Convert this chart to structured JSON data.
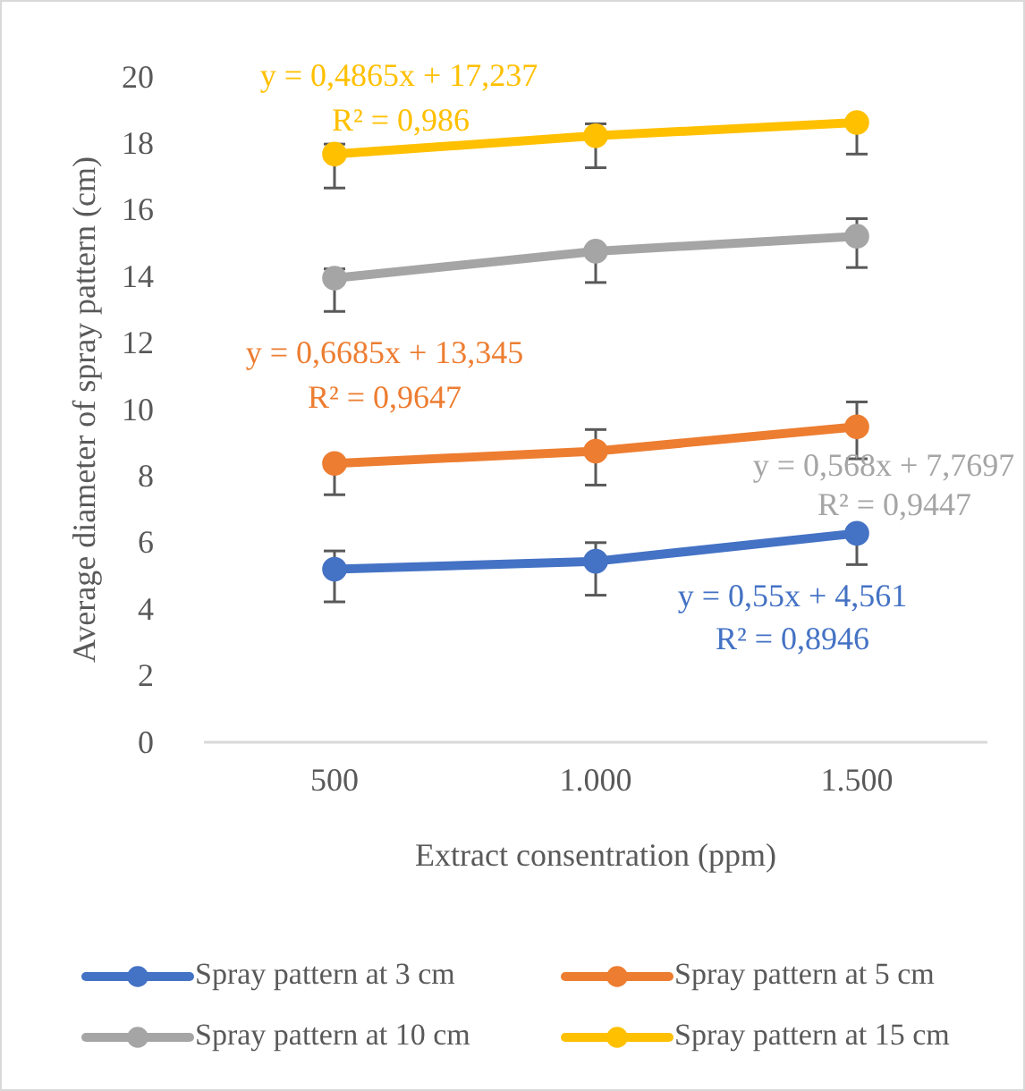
{
  "chart_data": {
    "type": "line",
    "xlabel": "Extract consentration (ppm)",
    "ylabel": "Average diameter of spray pattern (cm)",
    "categories": [
      "500",
      "1.000",
      "1.500"
    ],
    "ylim": [
      0,
      20
    ],
    "yticks": [
      0,
      2,
      4,
      6,
      8,
      10,
      12,
      14,
      16,
      18,
      20
    ],
    "grid": false,
    "legend": "bottom",
    "marker": "circle",
    "line_style": "solid",
    "series": [
      {
        "name": "Spray pattern at 3 cm",
        "color": "#4472c4",
        "values": [
          5.2,
          5.44,
          6.28
        ],
        "errors": [
          [
            4.22,
            5.75
          ],
          [
            4.42,
            6.0
          ],
          [
            5.34,
            6.28
          ]
        ]
      },
      {
        "name": "Spray pattern at 5 cm",
        "color": "#ed7d31",
        "values": [
          8.38,
          8.75,
          9.48
        ],
        "errors": [
          [
            7.44,
            8.38
          ],
          [
            7.73,
            9.4
          ],
          [
            8.52,
            10.23
          ]
        ]
      },
      {
        "name": "Spray pattern at 10 cm",
        "color": "#a5a5a5",
        "values": [
          13.95,
          14.76,
          15.21
        ],
        "errors": [
          [
            12.95,
            14.23
          ],
          [
            13.82,
            14.76
          ],
          [
            14.27,
            15.74
          ]
        ]
      },
      {
        "name": "Spray pattern at 15 cm",
        "color": "#ffc000",
        "values": [
          17.68,
          18.23,
          18.63
        ],
        "errors": [
          [
            16.66,
            17.98
          ],
          [
            17.27,
            18.59
          ],
          [
            17.68,
            18.63
          ]
        ]
      }
    ],
    "annotations": [
      "y = 0,55x + 4,561",
      "R² = 0,8946",
      "y = 0,6685x + 13,345",
      "R² = 0,9647",
      "y = 0,568x + 7,7697",
      "R² = 0,9447",
      "y = 0,4865x + 17,237",
      "R² = 0,986"
    ]
  }
}
